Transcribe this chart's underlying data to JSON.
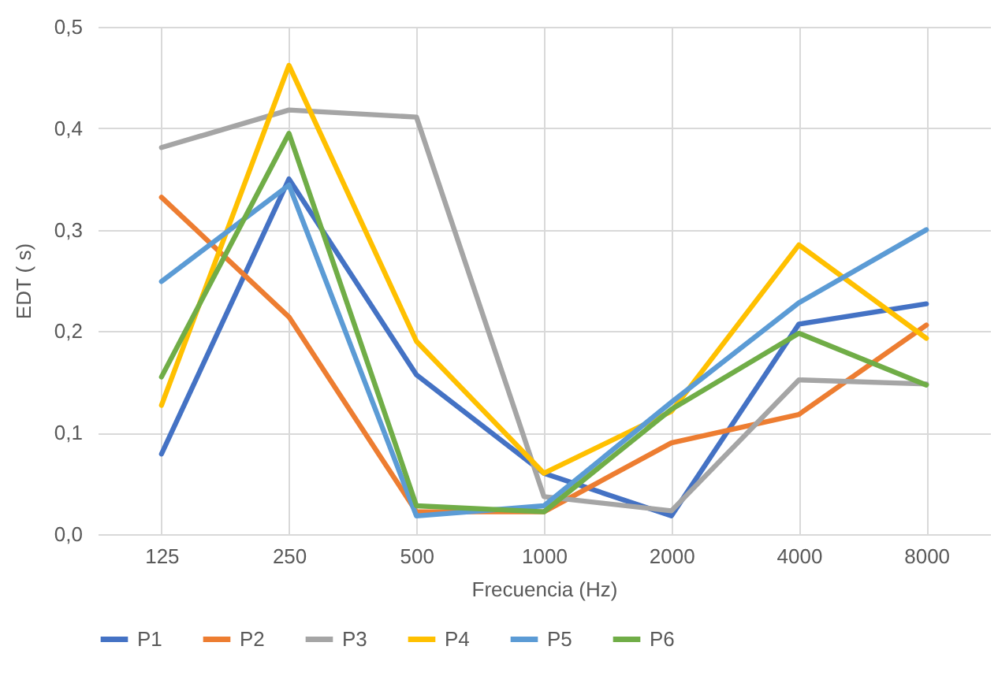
{
  "chart_data": {
    "type": "line",
    "xlabel": "Frecuencia (Hz)",
    "ylabel": "EDT ( s)",
    "categories": [
      "125",
      "250",
      "500",
      "1000",
      "2000",
      "4000",
      "8000"
    ],
    "series": [
      {
        "name": "P1",
        "color": "#4472c4",
        "values": [
          0.079,
          0.35,
          0.157,
          0.06,
          0.018,
          0.207,
          0.227
        ]
      },
      {
        "name": "P2",
        "color": "#ed7d31",
        "values": [
          0.332,
          0.214,
          0.022,
          0.022,
          0.09,
          0.118,
          0.206
        ]
      },
      {
        "name": "P3",
        "color": "#a5a5a5",
        "values": [
          0.381,
          0.418,
          0.411,
          0.037,
          0.023,
          0.152,
          0.148
        ]
      },
      {
        "name": "P4",
        "color": "#ffc000",
        "values": [
          0.127,
          0.462,
          0.19,
          0.06,
          0.121,
          0.285,
          0.193
        ]
      },
      {
        "name": "P5",
        "color": "#5b9bd5",
        "values": [
          0.249,
          0.344,
          0.018,
          0.028,
          0.13,
          0.228,
          0.3
        ]
      },
      {
        "name": "P6",
        "color": "#70ad47",
        "values": [
          0.155,
          0.395,
          0.028,
          0.022,
          0.123,
          0.198,
          0.147
        ]
      }
    ],
    "ylim": [
      0,
      0.5
    ],
    "yticks": [
      {
        "value": 0,
        "label": "0,0"
      },
      {
        "value": 0.1,
        "label": "0,1"
      },
      {
        "value": 0.2,
        "label": "0,2"
      },
      {
        "value": 0.3,
        "label": "0,3"
      },
      {
        "value": 0.4,
        "label": "0,4"
      },
      {
        "value": 0.5,
        "label": "0,5"
      }
    ],
    "grid": true,
    "legend": "bottom",
    "marker": "none",
    "line_style": "solid"
  }
}
